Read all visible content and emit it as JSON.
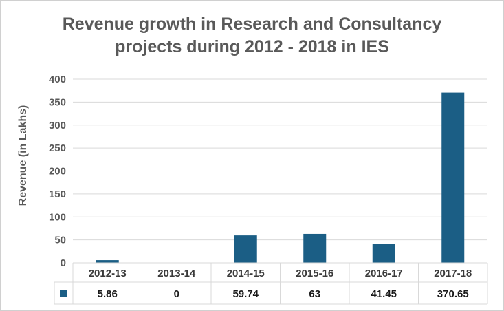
{
  "chart_data": {
    "type": "bar",
    "title_lines": [
      "Revenue growth in Research and Consultancy",
      "projects during 2012 - 2018 in IES"
    ],
    "xlabel": "",
    "ylabel": "Revenue (in Lakhs)",
    "categories": [
      "2012-13",
      "2013-14",
      "2014-15",
      "2015-16",
      "2016-17",
      "2017-18"
    ],
    "series": [
      {
        "values": [
          5.86,
          0,
          59.74,
          63,
          41.45,
          370.65
        ],
        "value_labels": [
          "5.86",
          "0",
          "59.74",
          "63",
          "41.45",
          "370.65"
        ]
      }
    ],
    "ylim": [
      0,
      400
    ],
    "yticks": [
      "0",
      "50",
      "100",
      "150",
      "200",
      "250",
      "300",
      "350",
      "400"
    ],
    "grid": true,
    "legend": "data-table",
    "data_table": true,
    "colors": {
      "bar": "#1b5e85",
      "grid": "#d9d9d9",
      "text": "#595959"
    }
  }
}
